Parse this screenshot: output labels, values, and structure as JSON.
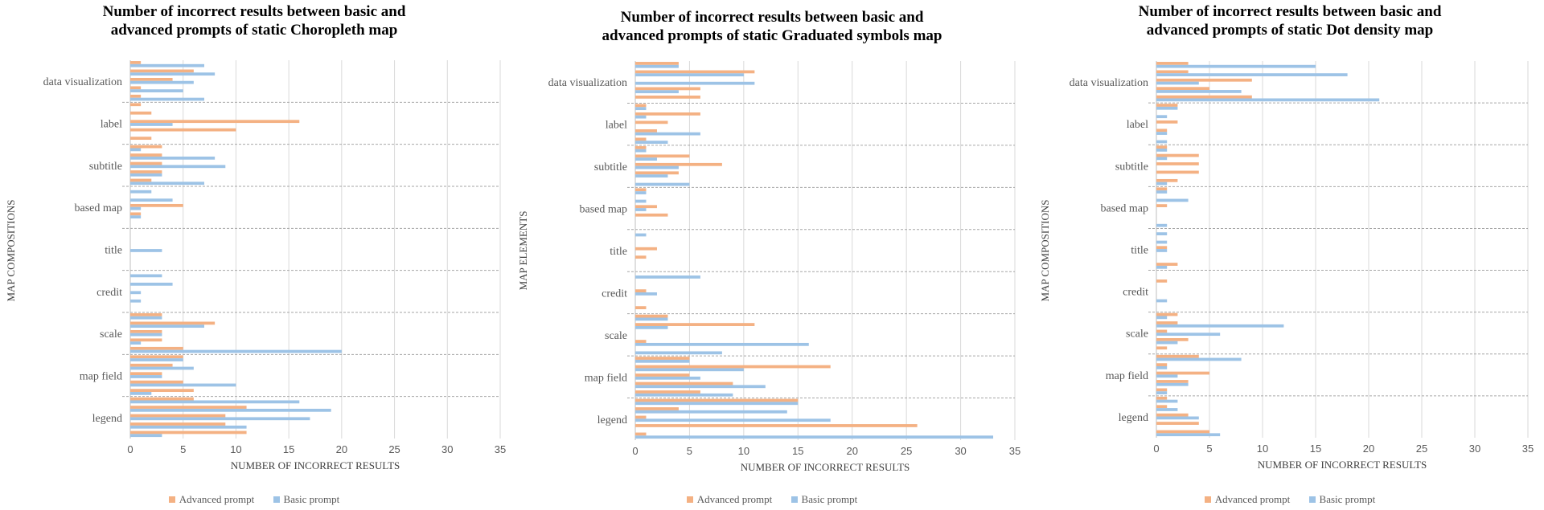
{
  "chart_data": [
    {
      "type": "bar",
      "orientation": "horizontal",
      "title_lines": [
        "Number of incorrect results between basic and",
        "advanced prompts of static Choropleth map"
      ],
      "xlabel": "NUMBER OF INCORRECT RESULTS",
      "ylabel": "MAP COMPOSITIONS",
      "xlim": [
        0,
        35
      ],
      "xticks": [
        "0",
        "5",
        "10",
        "15",
        "20",
        "25",
        "30",
        "35"
      ],
      "grid": true,
      "legend_position": "bottom",
      "categories": [
        "data visualization",
        "label",
        "subtitle",
        "based map",
        "title",
        "credit",
        "scale",
        "map field",
        "legend"
      ],
      "series": [
        {
          "name": "Advanced prompt",
          "color": "#F4B183",
          "values": [
            [
              1,
              6,
              4,
              1,
              1
            ],
            [
              1,
              2,
              16,
              10,
              2
            ],
            [
              3,
              3,
              3,
              3,
              2
            ],
            [
              0,
              0,
              5,
              1,
              0
            ],
            [
              0,
              0,
              0,
              0,
              0
            ],
            [
              0,
              0,
              0,
              0,
              0
            ],
            [
              3,
              8,
              3,
              3,
              5
            ],
            [
              5,
              4,
              3,
              5,
              6
            ],
            [
              6,
              11,
              9,
              9,
              11
            ]
          ]
        },
        {
          "name": "Basic prompt",
          "color": "#9DC3E6",
          "values": [
            [
              7,
              8,
              6,
              5,
              7
            ],
            [
              0,
              0,
              4,
              0,
              0
            ],
            [
              1,
              8,
              9,
              3,
              7
            ],
            [
              2,
              4,
              1,
              1,
              0
            ],
            [
              0,
              0,
              3,
              0,
              0
            ],
            [
              3,
              4,
              1,
              1,
              0
            ],
            [
              3,
              7,
              3,
              1,
              20
            ],
            [
              5,
              6,
              3,
              10,
              2
            ],
            [
              16,
              19,
              17,
              11,
              3
            ]
          ]
        }
      ]
    },
    {
      "type": "bar",
      "orientation": "horizontal",
      "title_lines": [
        "Number of incorrect results between basic and",
        "advanced prompts of static Graduated symbols map"
      ],
      "xlabel": "NUMBER OF INCORRECT RESULTS",
      "ylabel": "MAP ELEMENTS",
      "xlim": [
        0,
        35
      ],
      "xticks": [
        "0",
        "5",
        "10",
        "15",
        "20",
        "25",
        "30",
        "35"
      ],
      "grid": true,
      "legend_position": "bottom",
      "categories": [
        "data visualization",
        "label",
        "subtitle",
        "based map",
        "title",
        "credit",
        "scale",
        "map field",
        "legend"
      ],
      "series": [
        {
          "name": "Advanced prompt",
          "color": "#F4B183",
          "values": [
            [
              4,
              11,
              0,
              6,
              6
            ],
            [
              1,
              6,
              3,
              2,
              1
            ],
            [
              1,
              5,
              8,
              4,
              0
            ],
            [
              1,
              0,
              2,
              3,
              0
            ],
            [
              0,
              0,
              2,
              1,
              0
            ],
            [
              0,
              0,
              1,
              0,
              1
            ],
            [
              3,
              11,
              0,
              1,
              0
            ],
            [
              5,
              18,
              5,
              9,
              6
            ],
            [
              15,
              4,
              1,
              26,
              1
            ]
          ]
        },
        {
          "name": "Basic prompt",
          "color": "#9DC3E6",
          "values": [
            [
              4,
              10,
              11,
              4,
              0
            ],
            [
              1,
              1,
              0,
              6,
              3
            ],
            [
              1,
              2,
              4,
              3,
              5
            ],
            [
              1,
              1,
              1,
              0,
              0
            ],
            [
              1,
              0,
              0,
              0,
              0
            ],
            [
              6,
              0,
              2,
              0,
              0
            ],
            [
              3,
              3,
              0,
              16,
              8
            ],
            [
              5,
              10,
              6,
              12,
              9
            ],
            [
              15,
              14,
              18,
              0,
              33
            ]
          ]
        }
      ]
    },
    {
      "type": "bar",
      "orientation": "horizontal",
      "title_lines": [
        "Number of incorrect results between basic and",
        "advanced prompts of static Dot density map"
      ],
      "xlabel": "NUMBER OF INCORRECT RESULTS",
      "ylabel": "MAP COMPOSITIONS",
      "xlim": [
        0,
        35
      ],
      "xticks": [
        "0",
        "5",
        "10",
        "15",
        "20",
        "25",
        "30",
        "35"
      ],
      "grid": true,
      "legend_position": "bottom",
      "categories": [
        "data visualization",
        "label",
        "subtitle",
        "based map",
        "title",
        "credit",
        "scale",
        "map field",
        "legend"
      ],
      "series": [
        {
          "name": "Advanced prompt",
          "color": "#F4B183",
          "values": [
            [
              3,
              3,
              9,
              5,
              9
            ],
            [
              2,
              0,
              2,
              1,
              0
            ],
            [
              1,
              4,
              4,
              4,
              2
            ],
            [
              1,
              0,
              1,
              0,
              0
            ],
            [
              0,
              0,
              1,
              0,
              2
            ],
            [
              0,
              1,
              0,
              0,
              0
            ],
            [
              2,
              2,
              1,
              3,
              1
            ],
            [
              4,
              1,
              5,
              3,
              1
            ],
            [
              1,
              1,
              3,
              4,
              5
            ]
          ]
        },
        {
          "name": "Basic prompt",
          "color": "#9DC3E6",
          "values": [
            [
              15,
              18,
              4,
              8,
              21
            ],
            [
              2,
              1,
              0,
              1,
              1
            ],
            [
              1,
              1,
              0,
              0,
              1
            ],
            [
              1,
              3,
              0,
              0,
              1
            ],
            [
              1,
              1,
              1,
              0,
              1
            ],
            [
              0,
              0,
              0,
              1,
              0
            ],
            [
              1,
              12,
              6,
              2,
              0
            ],
            [
              8,
              1,
              2,
              3,
              1
            ],
            [
              2,
              2,
              4,
              0,
              6
            ]
          ]
        }
      ]
    }
  ]
}
